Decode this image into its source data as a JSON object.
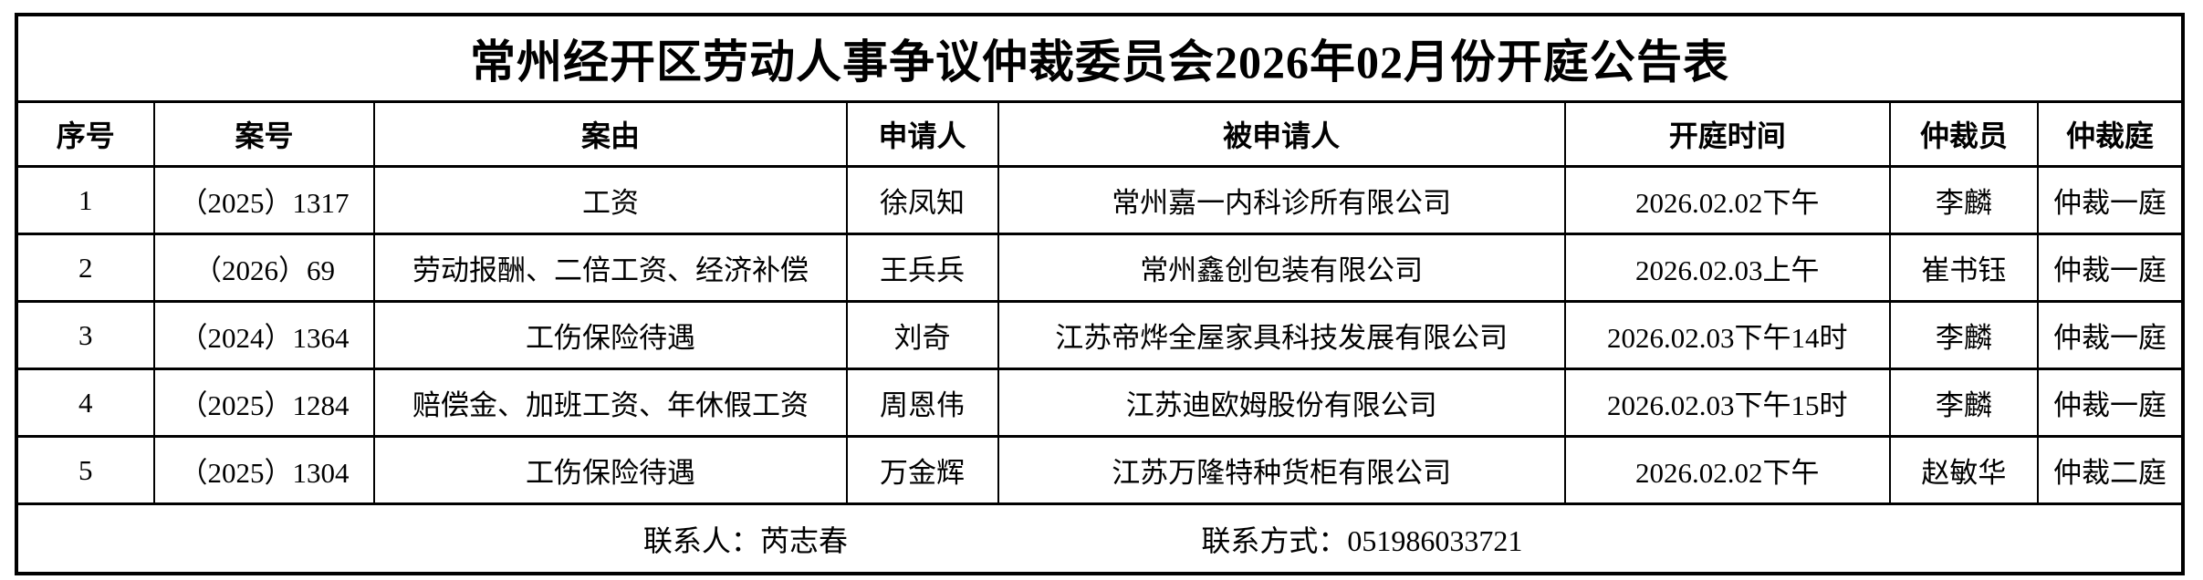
{
  "table": {
    "title": "常州经开区劳动人事争议仲裁委员会2026年02月份开庭公告表",
    "columns": [
      "序号",
      "案号",
      "案由",
      "申请人",
      "被申请人",
      "开庭时间",
      "仲裁员",
      "仲裁庭"
    ],
    "rows": [
      [
        "1",
        "（2025）1317",
        "工资",
        "徐凤知",
        "常州嘉一内科诊所有限公司",
        "2026.02.02下午",
        "李麟",
        "仲裁一庭"
      ],
      [
        "2",
        "（2026）69",
        "劳动报酬、二倍工资、经济补偿",
        "王兵兵",
        "常州鑫创包装有限公司",
        "2026.02.03上午",
        "崔书钰",
        "仲裁一庭"
      ],
      [
        "3",
        "（2024）1364",
        "工伤保险待遇",
        "刘奇",
        "江苏帝烨全屋家具科技发展有限公司",
        "2026.02.03下午14时",
        "李麟",
        "仲裁一庭"
      ],
      [
        "4",
        "（2025）1284",
        "赔偿金、加班工资、年休假工资",
        "周恩伟",
        "江苏迪欧姆股份有限公司",
        "2026.02.03下午15时",
        "李麟",
        "仲裁一庭"
      ],
      [
        "5",
        "（2025）1304",
        "工伤保险待遇",
        "万金辉",
        "江苏万隆特种货柜有限公司",
        "2026.02.02下午",
        "赵敏华",
        "仲裁二庭"
      ]
    ],
    "footer": {
      "contact_label": "联系人：",
      "contact_name": "芮志春",
      "phone_label": "联系方式：",
      "phone_number": "051986033721"
    },
    "colors": {
      "text": "#000000",
      "border": "#000000",
      "background": "#ffffff"
    }
  }
}
